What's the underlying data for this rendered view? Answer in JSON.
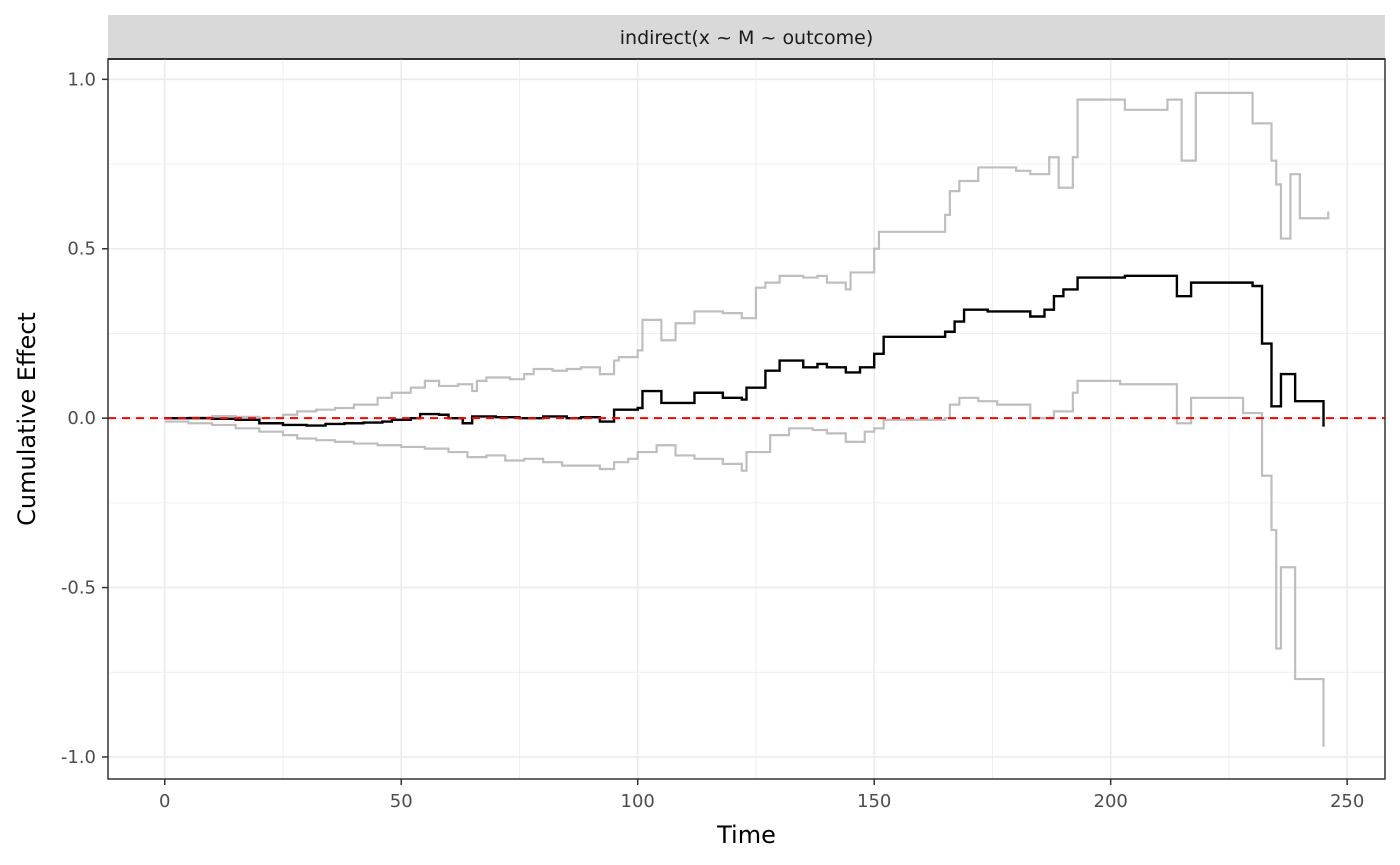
{
  "chart_data": {
    "type": "line",
    "facet_label": "indirect(x ~ M ~ outcome)",
    "xlabel": "Time",
    "ylabel": "Cumulative Effect",
    "xlim": [
      -12,
      258
    ],
    "ylim": [
      -1.065,
      1.06
    ],
    "x_ticks": [
      0,
      50,
      100,
      150,
      200,
      250
    ],
    "x_tick_labels": [
      "0",
      "50",
      "100",
      "150",
      "200",
      "250"
    ],
    "y_ticks": [
      -1.0,
      -0.5,
      0.0,
      0.5,
      1.0
    ],
    "y_tick_labels": [
      "-1.0",
      "-0.5",
      "0.0",
      "0.5",
      "1.0"
    ],
    "grid": true,
    "reference_line": {
      "y": 0,
      "style": "dashed",
      "color": "#ff0000"
    },
    "colors": {
      "estimate": "#000000",
      "bounds": "#bebebe",
      "strip_bg": "#d9d9d9",
      "grid": "#ebebeb"
    },
    "series": [
      {
        "role": "upper",
        "step": true,
        "points": [
          [
            0,
            0
          ],
          [
            5,
            0.002
          ],
          [
            10,
            0.006
          ],
          [
            15,
            0.004
          ],
          [
            20,
            0.0
          ],
          [
            25,
            0.01
          ],
          [
            28,
            0.02
          ],
          [
            32,
            0.025
          ],
          [
            36,
            0.03
          ],
          [
            40,
            0.04
          ],
          [
            45,
            0.06
          ],
          [
            48,
            0.075
          ],
          [
            52,
            0.09
          ],
          [
            55,
            0.11
          ],
          [
            58,
            0.095
          ],
          [
            62,
            0.1
          ],
          [
            65,
            0.08
          ],
          [
            66,
            0.11
          ],
          [
            68,
            0.12
          ],
          [
            73,
            0.115
          ],
          [
            76,
            0.13
          ],
          [
            78,
            0.145
          ],
          [
            82,
            0.14
          ],
          [
            85,
            0.145
          ],
          [
            88,
            0.15
          ],
          [
            92,
            0.13
          ],
          [
            95,
            0.17
          ],
          [
            96,
            0.18
          ],
          [
            100,
            0.2
          ],
          [
            101,
            0.29
          ],
          [
            105,
            0.23
          ],
          [
            108,
            0.28
          ],
          [
            112,
            0.315
          ],
          [
            118,
            0.31
          ],
          [
            122,
            0.295
          ],
          [
            125,
            0.385
          ],
          [
            127,
            0.4
          ],
          [
            130,
            0.42
          ],
          [
            135,
            0.415
          ],
          [
            138,
            0.42
          ],
          [
            140,
            0.4
          ],
          [
            144,
            0.38
          ],
          [
            145,
            0.43
          ],
          [
            150,
            0.5
          ],
          [
            151,
            0.55
          ],
          [
            165,
            0.6
          ],
          [
            166,
            0.67
          ],
          [
            168,
            0.7
          ],
          [
            172,
            0.74
          ],
          [
            180,
            0.73
          ],
          [
            183,
            0.72
          ],
          [
            187,
            0.77
          ],
          [
            189,
            0.68
          ],
          [
            192,
            0.77
          ],
          [
            193,
            0.94
          ],
          [
            203,
            0.91
          ],
          [
            212,
            0.94
          ],
          [
            215,
            0.76
          ],
          [
            218,
            0.96
          ],
          [
            230,
            0.87
          ],
          [
            234,
            0.76
          ],
          [
            235,
            0.69
          ],
          [
            236,
            0.53
          ],
          [
            238,
            0.72
          ],
          [
            240,
            0.59
          ],
          [
            246,
            0.61
          ]
        ]
      },
      {
        "role": "estimate",
        "step": true,
        "points": [
          [
            0,
            0
          ],
          [
            10,
            -0.002
          ],
          [
            15,
            -0.005
          ],
          [
            20,
            -0.015
          ],
          [
            25,
            -0.02
          ],
          [
            30,
            -0.022
          ],
          [
            34,
            -0.017
          ],
          [
            38,
            -0.015
          ],
          [
            42,
            -0.013
          ],
          [
            46,
            -0.01
          ],
          [
            48,
            -0.005
          ],
          [
            52,
            0.0
          ],
          [
            54,
            0.012
          ],
          [
            58,
            0.01
          ],
          [
            60,
            0.0
          ],
          [
            63,
            -0.015
          ],
          [
            65,
            0.005
          ],
          [
            70,
            0.003
          ],
          [
            75,
            0.0
          ],
          [
            80,
            0.005
          ],
          [
            85,
            0.0
          ],
          [
            88,
            0.003
          ],
          [
            92,
            -0.01
          ],
          [
            95,
            0.025
          ],
          [
            100,
            0.03
          ],
          [
            101,
            0.08
          ],
          [
            105,
            0.045
          ],
          [
            112,
            0.075
          ],
          [
            118,
            0.06
          ],
          [
            122,
            0.055
          ],
          [
            123,
            0.09
          ],
          [
            127,
            0.14
          ],
          [
            130,
            0.17
          ],
          [
            135,
            0.15
          ],
          [
            138,
            0.16
          ],
          [
            140,
            0.15
          ],
          [
            144,
            0.135
          ],
          [
            147,
            0.15
          ],
          [
            150,
            0.19
          ],
          [
            152,
            0.24
          ],
          [
            165,
            0.255
          ],
          [
            167,
            0.285
          ],
          [
            169,
            0.32
          ],
          [
            174,
            0.315
          ],
          [
            183,
            0.3
          ],
          [
            186,
            0.32
          ],
          [
            188,
            0.36
          ],
          [
            190,
            0.38
          ],
          [
            193,
            0.415
          ],
          [
            203,
            0.42
          ],
          [
            214,
            0.36
          ],
          [
            217,
            0.4
          ],
          [
            230,
            0.39
          ],
          [
            232,
            0.22
          ],
          [
            234,
            0.035
          ],
          [
            236,
            0.13
          ],
          [
            239,
            0.05
          ],
          [
            245,
            -0.025
          ]
        ]
      },
      {
        "role": "lower",
        "step": true,
        "points": [
          [
            0,
            -0.01
          ],
          [
            5,
            -0.015
          ],
          [
            10,
            -0.02
          ],
          [
            15,
            -0.03
          ],
          [
            20,
            -0.04
          ],
          [
            25,
            -0.05
          ],
          [
            28,
            -0.06
          ],
          [
            32,
            -0.065
          ],
          [
            36,
            -0.07
          ],
          [
            40,
            -0.075
          ],
          [
            45,
            -0.08
          ],
          [
            50,
            -0.085
          ],
          [
            55,
            -0.09
          ],
          [
            60,
            -0.1
          ],
          [
            64,
            -0.115
          ],
          [
            68,
            -0.11
          ],
          [
            72,
            -0.125
          ],
          [
            76,
            -0.12
          ],
          [
            80,
            -0.13
          ],
          [
            84,
            -0.14
          ],
          [
            88,
            -0.14
          ],
          [
            92,
            -0.15
          ],
          [
            95,
            -0.13
          ],
          [
            98,
            -0.12
          ],
          [
            100,
            -0.1
          ],
          [
            104,
            -0.08
          ],
          [
            108,
            -0.11
          ],
          [
            112,
            -0.12
          ],
          [
            118,
            -0.135
          ],
          [
            122,
            -0.155
          ],
          [
            123,
            -0.1
          ],
          [
            128,
            -0.05
          ],
          [
            132,
            -0.03
          ],
          [
            137,
            -0.035
          ],
          [
            140,
            -0.045
          ],
          [
            144,
            -0.07
          ],
          [
            148,
            -0.04
          ],
          [
            150,
            -0.03
          ],
          [
            152,
            -0.005
          ],
          [
            165,
            0.0
          ],
          [
            166,
            0.04
          ],
          [
            168,
            0.06
          ],
          [
            172,
            0.05
          ],
          [
            176,
            0.04
          ],
          [
            183,
            0.0
          ],
          [
            188,
            0.02
          ],
          [
            192,
            0.075
          ],
          [
            193,
            0.11
          ],
          [
            202,
            0.1
          ],
          [
            214,
            -0.015
          ],
          [
            217,
            0.06
          ],
          [
            228,
            0.015
          ],
          [
            232,
            -0.17
          ],
          [
            234,
            -0.33
          ],
          [
            235,
            -0.68
          ],
          [
            236,
            -0.44
          ],
          [
            239,
            -0.77
          ],
          [
            245,
            -0.97
          ]
        ]
      }
    ]
  }
}
